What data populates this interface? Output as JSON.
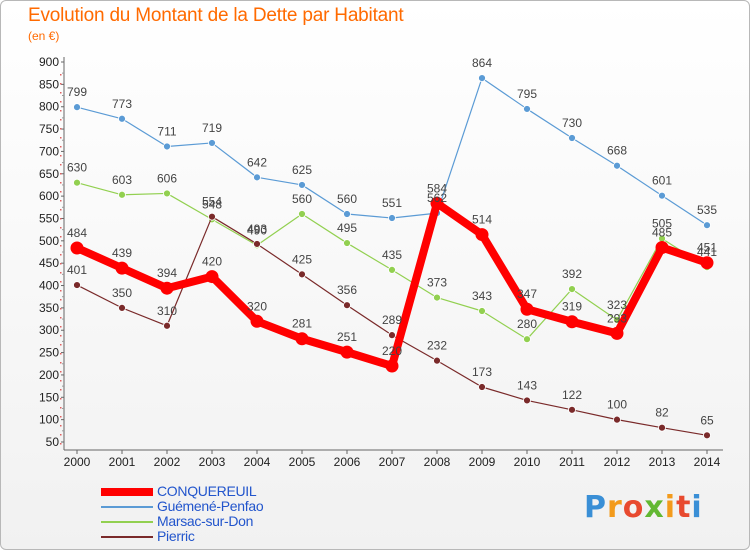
{
  "header": {
    "title": "Evolution du Montant de la Dette par Habitant",
    "unit": "(en €)"
  },
  "logo": {
    "text": "Proxiti",
    "colors": [
      "#3a8fd6",
      "#f39b1c",
      "#e84a2f",
      "#62b832",
      "#f39b1c",
      "#e84a2f",
      "#3a8fd6"
    ]
  },
  "chart_data": {
    "type": "line",
    "title": "Evolution du Montant de la Dette par Habitant",
    "ylabel": "(en €)",
    "xlabel": "",
    "x": [
      "2000",
      "2001",
      "2002",
      "2003",
      "2004",
      "2005",
      "2006",
      "2007",
      "2008",
      "2009",
      "2010",
      "2011",
      "2012",
      "2013",
      "2014"
    ],
    "ylim": [
      50,
      900
    ],
    "yticks": [
      50,
      100,
      150,
      200,
      250,
      300,
      350,
      400,
      450,
      500,
      550,
      600,
      650,
      700,
      750,
      800,
      850,
      900
    ],
    "grid": false,
    "legend_position": "bottom-left",
    "series": [
      {
        "name": "CONQUEREUIL",
        "color": "#ff0000",
        "labelColor": "#2255cc",
        "values": [
          484,
          439,
          394,
          420,
          320,
          281,
          251,
          220,
          584,
          514,
          347,
          319,
          293,
          485,
          451
        ],
        "labels": [
          "484",
          "439",
          "394",
          "420",
          "320",
          "281",
          "251",
          "220",
          "584",
          "514",
          "347",
          "319",
          "293",
          "485",
          "451"
        ]
      },
      {
        "name": "Guémené-Penfao",
        "color": "#5b9bd5",
        "labelColor": "#2255cc",
        "values": [
          799,
          773,
          711,
          719,
          642,
          625,
          560,
          551,
          562,
          864,
          795,
          730,
          668,
          601,
          535
        ],
        "labels": [
          "799",
          "773",
          "711",
          "719",
          "642",
          "625",
          "560",
          "551",
          "562",
          "864",
          "795",
          "730",
          "668",
          "601",
          "535"
        ]
      },
      {
        "name": "Marsac-sur-Don",
        "color": "#92d050",
        "labelColor": "#2255cc",
        "values": [
          630,
          603,
          606,
          548,
          490,
          560,
          495,
          435,
          373,
          343,
          280,
          392,
          323,
          505,
          441
        ],
        "labels": [
          "630",
          "603",
          "606",
          "548",
          "490",
          "560",
          "495",
          "435",
          "373",
          "343",
          "280",
          "392",
          "323",
          "505",
          "441"
        ]
      },
      {
        "name": "Pierric",
        "color": "#7a2a2a",
        "labelColor": "#2255cc",
        "values": [
          401,
          350,
          310,
          554,
          493,
          425,
          356,
          289,
          232,
          173,
          143,
          122,
          100,
          82,
          65
        ],
        "labels": [
          "401",
          "350",
          "310",
          "554",
          "493",
          "425",
          "356",
          "289",
          "232",
          "173",
          "143",
          "122",
          "100",
          "82",
          "65"
        ]
      }
    ]
  }
}
